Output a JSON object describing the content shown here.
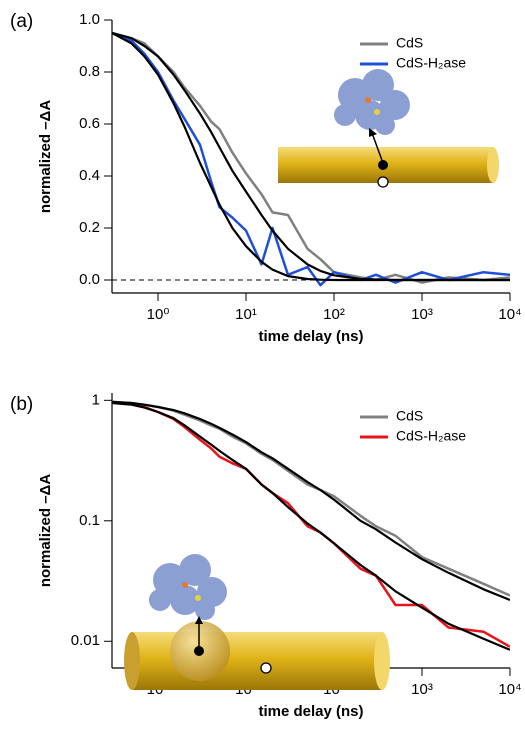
{
  "chart_data": [
    {
      "type": "line",
      "panel_label": "(a)",
      "x_label": "time delay (ns)",
      "y_label": "normalized –ΔA",
      "xscale": "log",
      "yscale": "linear",
      "xlim": [
        0.3,
        10000
      ],
      "ylim": [
        -0.05,
        1.0
      ],
      "xticks": [
        {
          "value": 1,
          "label": "10⁰"
        },
        {
          "value": 10,
          "label": "10¹"
        },
        {
          "value": 100,
          "label": "10²"
        },
        {
          "value": 1000,
          "label": "10³"
        },
        {
          "value": 10000,
          "label": "10⁴"
        }
      ],
      "yticks": [
        {
          "value": 0,
          "label": "0.0"
        },
        0.2,
        0.4,
        0.6,
        0.8,
        {
          "value": 1,
          "label": "1.0"
        }
      ],
      "zero_line": true,
      "legend": "upper right",
      "x": [
        0.3,
        0.5,
        0.7,
        1,
        1.5,
        2,
        3,
        4,
        5,
        7,
        10,
        15,
        20,
        30,
        50,
        70,
        100,
        200,
        300,
        500,
        1000,
        2000,
        5000,
        10000
      ],
      "series": [
        {
          "name": "CdS",
          "color": "#808080",
          "values": [
            0.95,
            0.93,
            0.91,
            0.86,
            0.8,
            0.74,
            0.67,
            0.61,
            0.58,
            0.49,
            0.41,
            0.33,
            0.26,
            0.25,
            0.12,
            0.08,
            0.03,
            0.01,
            0.0,
            0.02,
            -0.01,
            0.01,
            0.0,
            0.01
          ]
        },
        {
          "name": "CdS-H₂ase",
          "color": "#1f4fd8",
          "values": [
            0.95,
            0.92,
            0.87,
            0.8,
            0.69,
            0.62,
            0.52,
            0.38,
            0.28,
            0.24,
            0.19,
            0.06,
            0.2,
            0.02,
            0.05,
            -0.02,
            0.03,
            0.0,
            0.02,
            -0.01,
            0.03,
            0.0,
            0.03,
            0.02
          ]
        },
        {
          "color": "#000000",
          "values": [
            0.95,
            0.93,
            0.9,
            0.86,
            0.79,
            0.73,
            0.64,
            0.57,
            0.51,
            0.42,
            0.34,
            0.25,
            0.19,
            0.12,
            0.06,
            0.035,
            0.018,
            0.004,
            0.002,
            0.0,
            0.0,
            0.0,
            0.0,
            0.0
          ]
        },
        {
          "color": "#000000",
          "values": [
            0.95,
            0.91,
            0.86,
            0.79,
            0.68,
            0.59,
            0.45,
            0.36,
            0.29,
            0.2,
            0.13,
            0.07,
            0.04,
            0.015,
            0.004,
            0.001,
            0.0,
            0.0,
            0.0,
            0.0,
            0.0,
            0.0,
            0.0,
            0.0
          ]
        }
      ]
    },
    {
      "type": "line",
      "panel_label": "(b)",
      "x_label": "time delay (ns)",
      "y_label": "normalized –ΔA",
      "xscale": "log",
      "yscale": "log",
      "xlim": [
        0.3,
        10000
      ],
      "ylim": [
        0.006,
        1.15
      ],
      "xticks": [
        {
          "value": 1,
          "label": "10⁰"
        },
        {
          "value": 10,
          "label": "10¹"
        },
        {
          "value": 100,
          "label": "10²"
        },
        {
          "value": 1000,
          "label": "10³"
        },
        {
          "value": 10000,
          "label": "10⁴"
        }
      ],
      "yticks": [
        0.01,
        0.1,
        1
      ],
      "legend": "upper right",
      "x": [
        0.3,
        0.5,
        0.7,
        1,
        1.5,
        2,
        3,
        4,
        5,
        7,
        10,
        15,
        20,
        30,
        50,
        70,
        100,
        200,
        300,
        500,
        1000,
        2000,
        5000,
        10000
      ],
      "series": [
        {
          "name": "CdS",
          "color": "#808080",
          "values": [
            0.97,
            0.95,
            0.92,
            0.88,
            0.82,
            0.76,
            0.68,
            0.62,
            0.58,
            0.5,
            0.44,
            0.36,
            0.32,
            0.26,
            0.2,
            0.18,
            0.16,
            0.11,
            0.09,
            0.075,
            0.05,
            0.04,
            0.03,
            0.024
          ]
        },
        {
          "name": "CdS-H₂ase",
          "color": "#e8141c",
          "values": [
            0.97,
            0.93,
            0.88,
            0.8,
            0.7,
            0.6,
            0.47,
            0.4,
            0.34,
            0.3,
            0.27,
            0.2,
            0.17,
            0.14,
            0.09,
            0.08,
            0.065,
            0.04,
            0.035,
            0.02,
            0.02,
            0.013,
            0.012,
            0.009
          ]
        },
        {
          "color": "#000000",
          "values": [
            0.97,
            0.95,
            0.92,
            0.88,
            0.83,
            0.78,
            0.7,
            0.64,
            0.59,
            0.52,
            0.45,
            0.37,
            0.33,
            0.27,
            0.21,
            0.18,
            0.15,
            0.1,
            0.085,
            0.066,
            0.048,
            0.037,
            0.027,
            0.022
          ]
        },
        {
          "color": "#000000",
          "values": [
            0.95,
            0.92,
            0.87,
            0.8,
            0.71,
            0.62,
            0.5,
            0.43,
            0.38,
            0.32,
            0.27,
            0.2,
            0.17,
            0.13,
            0.095,
            0.08,
            0.065,
            0.043,
            0.035,
            0.026,
            0.019,
            0.014,
            0.0105,
            0.0085
          ]
        }
      ]
    }
  ]
}
